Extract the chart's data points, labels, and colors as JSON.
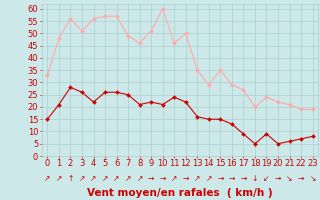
{
  "hours": [
    0,
    1,
    2,
    3,
    4,
    5,
    6,
    7,
    8,
    9,
    10,
    11,
    12,
    13,
    14,
    15,
    16,
    17,
    18,
    19,
    20,
    21,
    22,
    23
  ],
  "wind_avg": [
    15,
    21,
    28,
    26,
    22,
    26,
    26,
    25,
    21,
    22,
    21,
    24,
    22,
    16,
    15,
    15,
    13,
    9,
    5,
    9,
    5,
    6,
    7,
    8
  ],
  "wind_gust": [
    33,
    48,
    56,
    51,
    56,
    57,
    57,
    49,
    46,
    51,
    60,
    46,
    50,
    35,
    29,
    35,
    29,
    27,
    20,
    24,
    22,
    21,
    19,
    19
  ],
  "bg_color": "#cce8e8",
  "grid_color": "#aacfcf",
  "avg_color": "#cc0000",
  "gust_color": "#ffaaaa",
  "xlabel": "Vent moyen/en rafales  ( km/h )",
  "ylim": [
    0,
    62
  ],
  "yticks": [
    0,
    5,
    10,
    15,
    20,
    25,
    30,
    35,
    40,
    45,
    50,
    55,
    60
  ],
  "xlabel_color": "#cc0000",
  "xlabel_fontsize": 7.5,
  "tick_fontsize": 6,
  "tick_color": "#cc0000",
  "arrow_chars": [
    "↗",
    "↗",
    "↑",
    "↗",
    "↗",
    "↗",
    "↗",
    "↗",
    "↗",
    "→",
    "→",
    "↗",
    "→",
    "↗",
    "↗",
    "→",
    "→",
    "→",
    "↓",
    "↙",
    "→",
    "↘",
    "→",
    "↘"
  ]
}
